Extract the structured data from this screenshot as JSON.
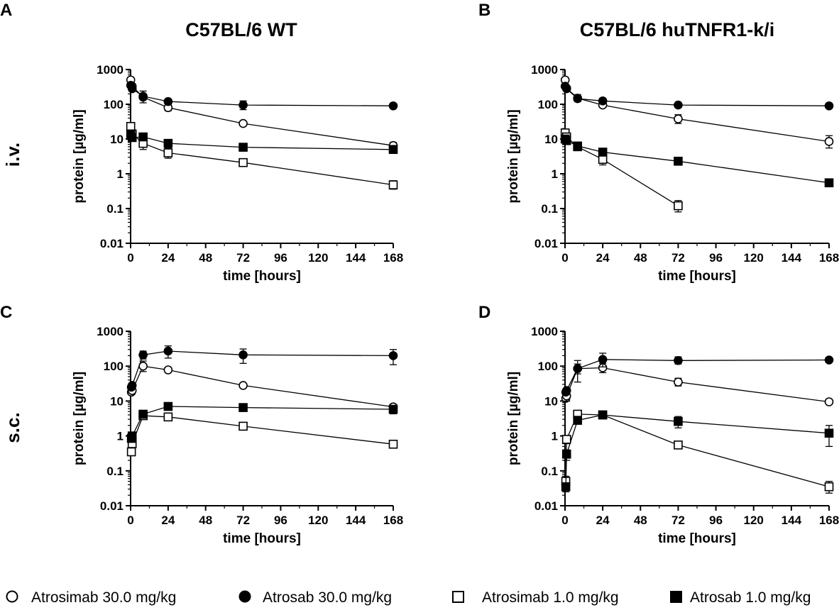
{
  "column_titles": [
    "C57BL/6 WT",
    "C57BL/6 huTNFR1-k/i"
  ],
  "row_labels": [
    "i.v.",
    "s.c."
  ],
  "legend": [
    {
      "label": "Atrosimab 30.0 mg/kg",
      "marker": "circle",
      "filled": false
    },
    {
      "label": "Atrosab 30.0 mg/kg",
      "marker": "circle",
      "filled": true
    },
    {
      "label": "Atrosimab 1.0 mg/kg",
      "marker": "square",
      "filled": false
    },
    {
      "label": "Atrosab 1.0 mg/kg",
      "marker": "square",
      "filled": true
    }
  ],
  "colors": {
    "ink": "#000000",
    "background": "#ffffff"
  },
  "chart_data": [
    {
      "panel": "A",
      "type": "line",
      "title": "C57BL/6 WT",
      "route": "i.v.",
      "xlabel": "time [hours]",
      "ylabel": "protein [µg/ml]",
      "yscale": "log",
      "xlim": [
        0,
        168
      ],
      "ylim": [
        0.01,
        1000
      ],
      "xticks": [
        0,
        24,
        48,
        72,
        96,
        120,
        144,
        168
      ],
      "yticks": [
        "0.01",
        "0.1",
        "1",
        "10",
        "100",
        "1000"
      ],
      "series": [
        {
          "name": "Atrosimab 30.0 mg/kg",
          "x": [
            0.083,
            1,
            8,
            24,
            72,
            168
          ],
          "y": [
            500,
            330,
            160,
            80,
            28,
            6.5
          ],
          "err_up": [
            0,
            0,
            80,
            20,
            0,
            1.5
          ],
          "err_down": [
            0,
            0,
            50,
            15,
            0,
            1.2
          ]
        },
        {
          "name": "Atrosab 30.0 mg/kg",
          "x": [
            0.083,
            1,
            8,
            24,
            72,
            168
          ],
          "y": [
            350,
            280,
            170,
            120,
            95,
            90
          ],
          "err_up": [
            0,
            0,
            0,
            10,
            30,
            0
          ],
          "err_down": [
            0,
            0,
            0,
            10,
            25,
            0
          ]
        },
        {
          "name": "Atrosimab 1.0 mg/kg",
          "x": [
            0.083,
            1,
            8,
            24,
            72,
            168
          ],
          "y": [
            23,
            14,
            7.5,
            4,
            2.1,
            0.48
          ],
          "err_up": [
            5,
            3,
            3,
            1.5,
            0.4,
            0.15
          ],
          "err_down": [
            4,
            3,
            2.5,
            1.2,
            0.3,
            0.12
          ]
        },
        {
          "name": "Atrosab 1.0 mg/kg",
          "x": [
            0.083,
            1,
            8,
            24,
            72,
            168
          ],
          "y": [
            14,
            11,
            11.5,
            7.5,
            5.8,
            5
          ],
          "err_up": [
            0,
            0,
            1.5,
            0,
            0,
            0
          ],
          "err_down": [
            0,
            0,
            1.5,
            0,
            0,
            0
          ]
        }
      ]
    },
    {
      "panel": "B",
      "type": "line",
      "title": "C57BL/6 huTNFR1-k/i",
      "route": "i.v.",
      "xlabel": "time [hours]",
      "ylabel": "protein [µg/ml]",
      "yscale": "log",
      "xlim": [
        0,
        168
      ],
      "ylim": [
        0.01,
        1000
      ],
      "xticks": [
        0,
        24,
        48,
        72,
        96,
        120,
        144,
        168
      ],
      "yticks": [
        "0.01",
        "0.1",
        "1",
        "10",
        "100",
        "1000"
      ],
      "series": [
        {
          "name": "Atrosimab 30.0 mg/kg",
          "x": [
            0.083,
            1,
            8,
            24,
            72,
            168
          ],
          "y": [
            500,
            290,
            150,
            95,
            38,
            8.5
          ],
          "err_up": [
            0,
            0,
            40,
            10,
            12,
            4
          ],
          "err_down": [
            0,
            0,
            30,
            10,
            10,
            3
          ]
        },
        {
          "name": "Atrosab 30.0 mg/kg",
          "x": [
            0.083,
            1,
            8,
            24,
            72,
            168
          ],
          "y": [
            330,
            280,
            145,
            125,
            95,
            90
          ],
          "err_up": [
            0,
            0,
            20,
            0,
            0,
            0
          ],
          "err_down": [
            0,
            0,
            20,
            0,
            0,
            0
          ]
        },
        {
          "name": "Atrosimab 1.0 mg/kg",
          "x": [
            0.083,
            1,
            8,
            24,
            72
          ],
          "y": [
            15,
            11.5,
            6,
            2.6,
            0.12
          ],
          "err_up": [
            4,
            2,
            1,
            1,
            0.05
          ],
          "err_down": [
            3,
            2,
            1,
            0.8,
            0.04
          ]
        },
        {
          "name": "Atrosab 1.0 mg/kg",
          "x": [
            0.083,
            1,
            8,
            24,
            72,
            168
          ],
          "y": [
            10,
            9,
            6.3,
            4.2,
            2.3,
            0.55
          ],
          "err_up": [
            0,
            0,
            0,
            0.6,
            0,
            0
          ],
          "err_down": [
            0,
            0,
            0,
            0.6,
            0,
            0
          ]
        }
      ]
    },
    {
      "panel": "C",
      "type": "line",
      "title": "",
      "route": "s.c.",
      "xlabel": "time [hours]",
      "ylabel": "protein [µg/ml]",
      "yscale": "log",
      "xlim": [
        0,
        168
      ],
      "ylim": [
        0.01,
        1000
      ],
      "xticks": [
        0,
        24,
        48,
        72,
        96,
        120,
        144,
        168
      ],
      "yticks": [
        "0.01",
        "0.1",
        "1",
        "10",
        "100",
        "1000"
      ],
      "series": [
        {
          "name": "Atrosimab 30.0 mg/kg",
          "x": [
            0.5,
            1,
            8,
            24,
            72,
            168
          ],
          "y": [
            18,
            20,
            100,
            78,
            28,
            6.8
          ],
          "err_up": [
            0,
            0,
            40,
            0,
            0,
            0
          ],
          "err_down": [
            0,
            0,
            30,
            0,
            0,
            0
          ]
        },
        {
          "name": "Atrosab 30.0 mg/kg",
          "x": [
            0.5,
            1,
            8,
            24,
            72,
            168
          ],
          "y": [
            25,
            28,
            210,
            270,
            210,
            200
          ],
          "err_up": [
            0,
            0,
            60,
            110,
            100,
            100
          ],
          "err_down": [
            0,
            0,
            50,
            100,
            90,
            90
          ]
        },
        {
          "name": "Atrosimab 1.0 mg/kg",
          "x": [
            0.5,
            1,
            8,
            24,
            72,
            168
          ],
          "y": [
            0.35,
            0.6,
            3.8,
            3.5,
            1.9,
            0.58
          ],
          "err_up": [
            0.05,
            0.1,
            0.8,
            0.5,
            0,
            0.1
          ],
          "err_down": [
            0.05,
            0.1,
            0.8,
            0.5,
            0,
            0.1
          ]
        },
        {
          "name": "Atrosab 1.0 mg/kg",
          "x": [
            0.5,
            1,
            8,
            24,
            72,
            168
          ],
          "y": [
            0.85,
            1.0,
            4.2,
            7,
            6.5,
            5.8
          ],
          "err_up": [
            0,
            0.2,
            0.8,
            0,
            0,
            1.5
          ],
          "err_down": [
            0,
            0.2,
            0.8,
            0,
            0,
            1.5
          ]
        }
      ]
    },
    {
      "panel": "D",
      "type": "line",
      "title": "",
      "route": "s.c.",
      "xlabel": "time [hours]",
      "ylabel": "protein [µg/ml]",
      "yscale": "log",
      "xlim": [
        0,
        168
      ],
      "ylim": [
        0.01,
        1000
      ],
      "xticks": [
        0,
        24,
        48,
        72,
        96,
        120,
        144,
        168
      ],
      "yticks": [
        "0.01",
        "0.1",
        "1",
        "10",
        "100",
        "1000"
      ],
      "series": [
        {
          "name": "Atrosimab 30.0 mg/kg",
          "x": [
            0.5,
            1,
            8,
            24,
            72,
            168
          ],
          "y": [
            12,
            14,
            85,
            90,
            35,
            9.5
          ],
          "err_up": [
            0,
            5,
            60,
            30,
            10,
            0
          ],
          "err_down": [
            0,
            4,
            50,
            25,
            8,
            0
          ]
        },
        {
          "name": "Atrosab 30.0 mg/kg",
          "x": [
            0.5,
            1,
            8,
            24,
            72,
            168
          ],
          "y": [
            18,
            20,
            85,
            155,
            145,
            150
          ],
          "err_up": [
            0,
            0,
            30,
            80,
            40,
            0
          ],
          "err_down": [
            0,
            0,
            25,
            60,
            30,
            0
          ]
        },
        {
          "name": "Atrosimab 1.0 mg/kg",
          "x": [
            0.5,
            1,
            8,
            24,
            72,
            168
          ],
          "y": [
            0.05,
            0.8,
            4.2,
            4.0,
            0.55,
            0.035
          ],
          "err_up": [
            0.02,
            0.2,
            0.6,
            0.5,
            0,
            0.015
          ],
          "err_down": [
            0.02,
            0.2,
            0.6,
            0.5,
            0,
            0.012
          ]
        },
        {
          "name": "Atrosab 1.0 mg/kg",
          "x": [
            0.5,
            1,
            8,
            24,
            72,
            168
          ],
          "y": [
            0.035,
            0.3,
            2.8,
            4.0,
            2.6,
            1.2
          ],
          "err_up": [
            0.01,
            0.1,
            0.5,
            0,
            1.0,
            0.8
          ],
          "err_down": [
            0.01,
            0.1,
            0.5,
            0,
            0.9,
            0.7
          ]
        }
      ]
    }
  ]
}
